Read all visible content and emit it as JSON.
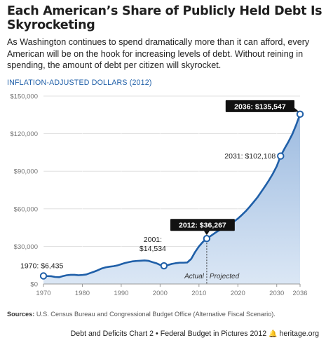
{
  "header": {
    "title": "Each American’s Share of Publicly Held Debt Is Skyrocketing",
    "subtitle": "As Washington continues to spend dramatically more than it can afford, every American will be on the hook for increasing levels of debt. Without reining in spending, the amount of debt per citizen will skyrocket.",
    "units_label": "INFLATION-ADJUSTED DOLLARS (2012)"
  },
  "chart_data": {
    "type": "area",
    "ylabel": "INFLATION-ADJUSTED DOLLARS (2012)",
    "xlim": [
      1970,
      2036
    ],
    "ylim": [
      0,
      150000
    ],
    "x_ticks": [
      "1970",
      "1980",
      "1990",
      "2000",
      "2010",
      "2020",
      "2030",
      "2036"
    ],
    "y_ticks": [
      "$0",
      "$30,000",
      "$60,000",
      "$90,000",
      "$120,000",
      "$150,000"
    ],
    "grid": true,
    "series": [
      {
        "x": [
          1970,
          1971,
          1972,
          1973,
          1974,
          1975,
          1976,
          1977,
          1978,
          1979,
          1980,
          1981,
          1982,
          1983,
          1984,
          1985,
          1986,
          1987,
          1988,
          1989,
          1990,
          1991,
          1992,
          1993,
          1994,
          1995,
          1996,
          1997,
          1998,
          1999,
          2000,
          2001,
          2002,
          2003,
          2004,
          2005,
          2006,
          2007,
          2008,
          2009,
          2010,
          2011,
          2012,
          2013,
          2014,
          2015,
          2016,
          2017,
          2018,
          2019,
          2020,
          2021,
          2022,
          2023,
          2024,
          2025,
          2026,
          2027,
          2028,
          2029,
          2030,
          2031,
          2032,
          2033,
          2034,
          2035,
          2036
        ],
        "values": [
          6435,
          6300,
          6200,
          5600,
          5400,
          6300,
          7000,
          7300,
          7300,
          7000,
          7200,
          7600,
          8700,
          9800,
          11000,
          12400,
          13300,
          13800,
          14200,
          14800,
          15800,
          16800,
          17500,
          18100,
          18400,
          18600,
          18800,
          18500,
          17500,
          16600,
          15200,
          14534,
          15100,
          16000,
          16600,
          17000,
          17000,
          17200,
          20000,
          25500,
          30000,
          33600,
          36267,
          38300,
          40500,
          42500,
          44300,
          46100,
          48000,
          49800,
          52200,
          55000,
          58000,
          61500,
          65200,
          69000,
          73500,
          78000,
          82800,
          88000,
          94000,
          102108,
          108000,
          113500,
          119500,
          127000,
          135547
        ],
        "color": "#1f5fa8"
      }
    ],
    "annotations": [
      {
        "x": 1970,
        "y": 6435,
        "text": "1970: $6,435"
      },
      {
        "x": 2001,
        "y": 14534,
        "text": "2001:\n$14,534",
        "line1": "2001:",
        "line2": "$14,534"
      },
      {
        "x": 2012,
        "y": 36267,
        "text": "2012: $36,267",
        "boxed": true
      },
      {
        "x": 2031,
        "y": 102108,
        "text": "2031: $102,108"
      },
      {
        "x": 2036,
        "y": 135547,
        "text": "2036: $135,547",
        "boxed": true
      }
    ],
    "divider": {
      "x": 2012,
      "left_label": "Actual",
      "right_label": "Projected"
    }
  },
  "sources": {
    "label": "Sources:",
    "text": "U.S. Census Bureau and Congressional Budget Office (Alternative Fiscal Scenario)."
  },
  "footer": {
    "chart_label": "Debt and Deficits Chart 2",
    "publication": "Federal Budget in Pictures 2012",
    "site": "heritage.org",
    "bullet": "•",
    "bell_icon": "bell-icon"
  }
}
